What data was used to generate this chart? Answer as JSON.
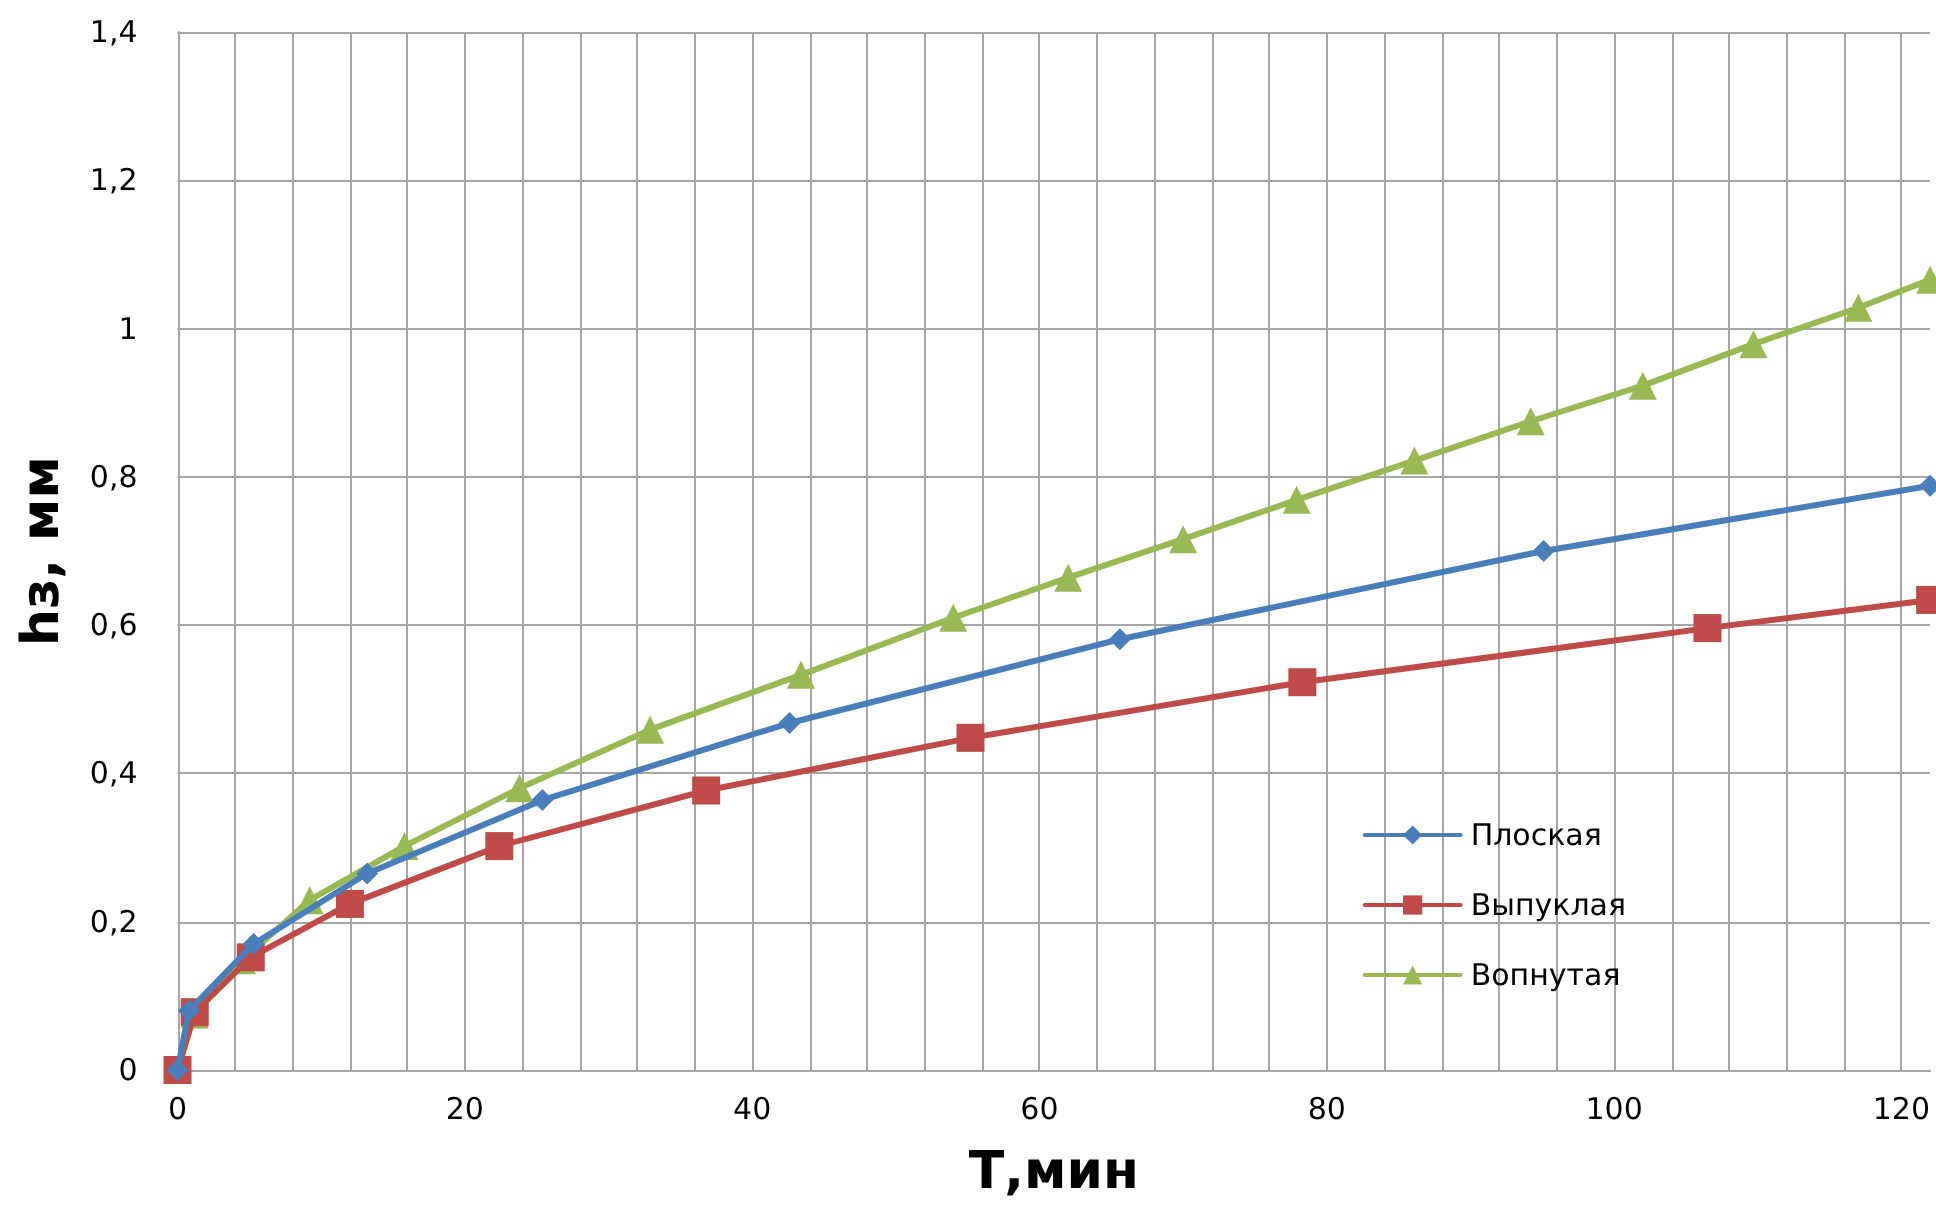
{
  "chart_data": {
    "type": "line",
    "xlabel": "Т,мин",
    "ylabel": "hз, мм",
    "xlim": [
      0,
      122
    ],
    "ylim": [
      0,
      1.4
    ],
    "xticks": [
      0,
      {
        "value": 4,
        "label": null
      },
      {
        "value": 8,
        "label": null
      },
      {
        "value": 12,
        "label": null
      },
      {
        "value": 16,
        "label": null
      },
      20,
      {
        "value": 24,
        "label": null
      },
      {
        "value": 28,
        "label": null
      },
      {
        "value": 32,
        "label": null
      },
      {
        "value": 36,
        "label": null
      },
      40,
      {
        "value": 44,
        "label": null
      },
      {
        "value": 48,
        "label": null
      },
      {
        "value": 52,
        "label": null
      },
      {
        "value": 56,
        "label": null
      },
      60,
      {
        "value": 64,
        "label": null
      },
      {
        "value": 68,
        "label": null
      },
      {
        "value": 72,
        "label": null
      },
      {
        "value": 76,
        "label": null
      },
      80,
      {
        "value": 84,
        "label": null
      },
      {
        "value": 88,
        "label": null
      },
      {
        "value": 92,
        "label": null
      },
      {
        "value": 96,
        "label": null
      },
      100,
      {
        "value": 104,
        "label": null
      },
      {
        "value": 108,
        "label": null
      },
      {
        "value": 112,
        "label": null
      },
      {
        "value": 116,
        "label": null
      },
      120
    ],
    "yticks": [
      0,
      {
        "value": 0.2,
        "label": "0,2"
      },
      {
        "value": 0.4,
        "label": "0,4"
      },
      {
        "value": 0.6,
        "label": "0,6"
      },
      {
        "value": 0.8,
        "label": "0,8"
      },
      1,
      {
        "value": 1.2,
        "label": "1,2"
      },
      {
        "value": 1.4,
        "label": "1,4"
      }
    ],
    "grid": true,
    "legend": "bottom right",
    "line_style": "solid",
    "series": [
      {
        "name": "Плоская",
        "color": "#4a7ebb",
        "marker": "diamond",
        "x": [
          0,
          0.8,
          5.3,
          13.2,
          25.4,
          42.6,
          65.6,
          95.1,
          122
        ],
        "values": [
          0,
          0.08,
          0.17,
          0.265,
          0.364,
          0.468,
          0.581,
          0.7,
          0.788
        ]
      },
      {
        "name": "Выпуклая",
        "color": "#be4b48",
        "marker": "square",
        "x": [
          0,
          1.2,
          5.1,
          12.0,
          22.4,
          36.8,
          55.2,
          78.3,
          106.5,
          122
        ],
        "values": [
          0,
          0.078,
          0.152,
          0.224,
          0.302,
          0.377,
          0.448,
          0.523,
          0.596,
          0.634
        ]
      },
      {
        "name": "Вопнутая",
        "color": "#98b954",
        "marker": "triangle",
        "x": [
          0,
          1.2,
          4.5,
          9.2,
          15.8,
          23.8,
          32.9,
          43.4,
          54.0,
          62.0,
          70.0,
          77.9,
          86.1,
          94.2,
          102.0,
          109.7,
          117.0,
          122
        ],
        "values": [
          0,
          0.075,
          0.148,
          0.229,
          0.302,
          0.38,
          0.459,
          0.533,
          0.61,
          0.664,
          0.716,
          0.769,
          0.822,
          0.875,
          0.923,
          0.979,
          1.028,
          1.066
        ]
      }
    ]
  }
}
